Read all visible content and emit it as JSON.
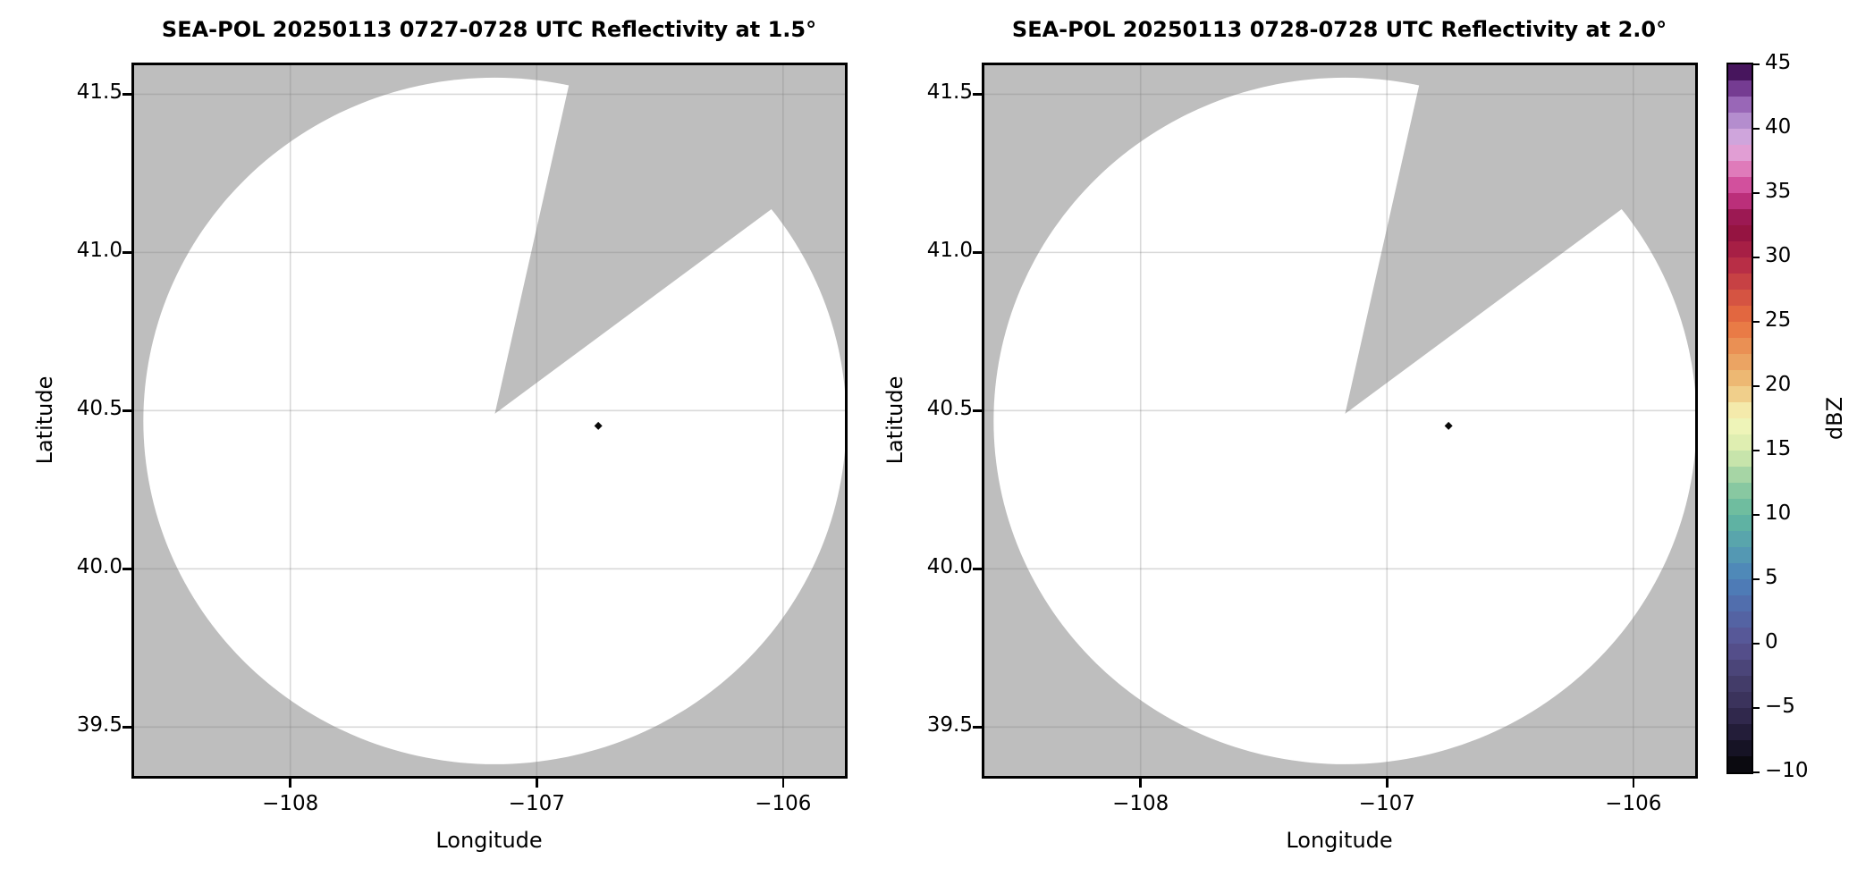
{
  "figure": {
    "background": "#ffffff",
    "panel_facecolor": "#bebebe",
    "scan_fill": "#ffffff",
    "spine_color": "#000000",
    "grid_color": "#808080",
    "grid_opacity": 0.3
  },
  "chart_data": [
    {
      "type": "radar_ppi_map",
      "title": "SEA-POL 20250113 0727-0728 UTC Reflectivity at 1.5°",
      "xlabel": "Longitude",
      "ylabel": "Latitude",
      "xlim": [
        -108.645,
        -105.738
      ],
      "ylim": [
        39.337,
        41.6
      ],
      "xticks": [
        {
          "v": -108,
          "label": "−108"
        },
        {
          "v": -107,
          "label": "−107"
        },
        {
          "v": -106,
          "label": "−106"
        }
      ],
      "yticks": [
        {
          "v": 39.5,
          "label": "39.5"
        },
        {
          "v": 40.0,
          "label": "40.0"
        },
        {
          "v": 40.5,
          "label": "40.5"
        },
        {
          "v": 41.0,
          "label": "41.0"
        },
        {
          "v": 41.5,
          "label": "41.5"
        }
      ],
      "grid": true,
      "radar_site": {
        "lon": -107.17,
        "lat": 40.49
      },
      "scan_radius_deg_lat": 1.085,
      "no_data_sector_azimuth_deg": [
        12.7,
        53.5
      ],
      "echoes": [
        {
          "lon": -106.75,
          "lat": 40.452,
          "marker": "diamond",
          "color": "#0a0a0a"
        }
      ]
    },
    {
      "type": "radar_ppi_map",
      "title": "SEA-POL 20250113 0728-0728 UTC Reflectivity at 2.0°",
      "xlabel": "Longitude",
      "ylabel": "Latitude",
      "xlim": [
        -108.645,
        -105.738
      ],
      "ylim": [
        39.337,
        41.6
      ],
      "xticks": [
        {
          "v": -108,
          "label": "−108"
        },
        {
          "v": -107,
          "label": "−107"
        },
        {
          "v": -106,
          "label": "−106"
        }
      ],
      "yticks": [
        {
          "v": 39.5,
          "label": "39.5"
        },
        {
          "v": 40.0,
          "label": "40.0"
        },
        {
          "v": 40.5,
          "label": "40.5"
        },
        {
          "v": 41.0,
          "label": "41.0"
        },
        {
          "v": 41.5,
          "label": "41.5"
        }
      ],
      "grid": true,
      "radar_site": {
        "lon": -107.17,
        "lat": 40.49
      },
      "scan_radius_deg_lat": 1.085,
      "no_data_sector_azimuth_deg": [
        12.7,
        53.5
      ],
      "echoes": [
        {
          "lon": -106.75,
          "lat": 40.452,
          "marker": "diamond",
          "color": "#0a0a0a"
        }
      ]
    }
  ],
  "colorbar": {
    "label": "dBZ",
    "vmin": -10,
    "vmax": 45,
    "band_step": 1.25,
    "ticks": [
      {
        "v": 45,
        "label": "45"
      },
      {
        "v": 40,
        "label": "40"
      },
      {
        "v": 35,
        "label": "35"
      },
      {
        "v": 30,
        "label": "30"
      },
      {
        "v": 25,
        "label": "25"
      },
      {
        "v": 20,
        "label": "20"
      },
      {
        "v": 15,
        "label": "15"
      },
      {
        "v": 10,
        "label": "10"
      },
      {
        "v": 5,
        "label": "5"
      },
      {
        "v": 0,
        "label": "0"
      },
      {
        "v": -5,
        "label": "−5"
      },
      {
        "v": -10,
        "label": "−10"
      }
    ],
    "colormap_name": "ChaseSpectral-like",
    "color_anchors": [
      [
        -10,
        "#050505"
      ],
      [
        -7.5,
        "#1c1730"
      ],
      [
        -5,
        "#372e55"
      ],
      [
        -2.5,
        "#474070"
      ],
      [
        0,
        "#585292"
      ],
      [
        2.5,
        "#5268a8"
      ],
      [
        5,
        "#4d81bb"
      ],
      [
        7.5,
        "#569fb0"
      ],
      [
        10,
        "#62b89e"
      ],
      [
        12.5,
        "#95cda2"
      ],
      [
        15,
        "#d7ebae"
      ],
      [
        17.5,
        "#f6f7bb"
      ],
      [
        20,
        "#eec27b"
      ],
      [
        22.5,
        "#ea9a5b"
      ],
      [
        25,
        "#e8713f"
      ],
      [
        27.5,
        "#cf4a43"
      ],
      [
        30,
        "#b02447"
      ],
      [
        32.5,
        "#8c0e3f"
      ],
      [
        35,
        "#cb3a8e"
      ],
      [
        37.5,
        "#e591c9"
      ],
      [
        38.75,
        "#ddaade"
      ],
      [
        40,
        "#c1a0d9"
      ],
      [
        42.5,
        "#8b54ab"
      ],
      [
        43.75,
        "#5e2379"
      ],
      [
        45,
        "#2f0740"
      ]
    ]
  }
}
